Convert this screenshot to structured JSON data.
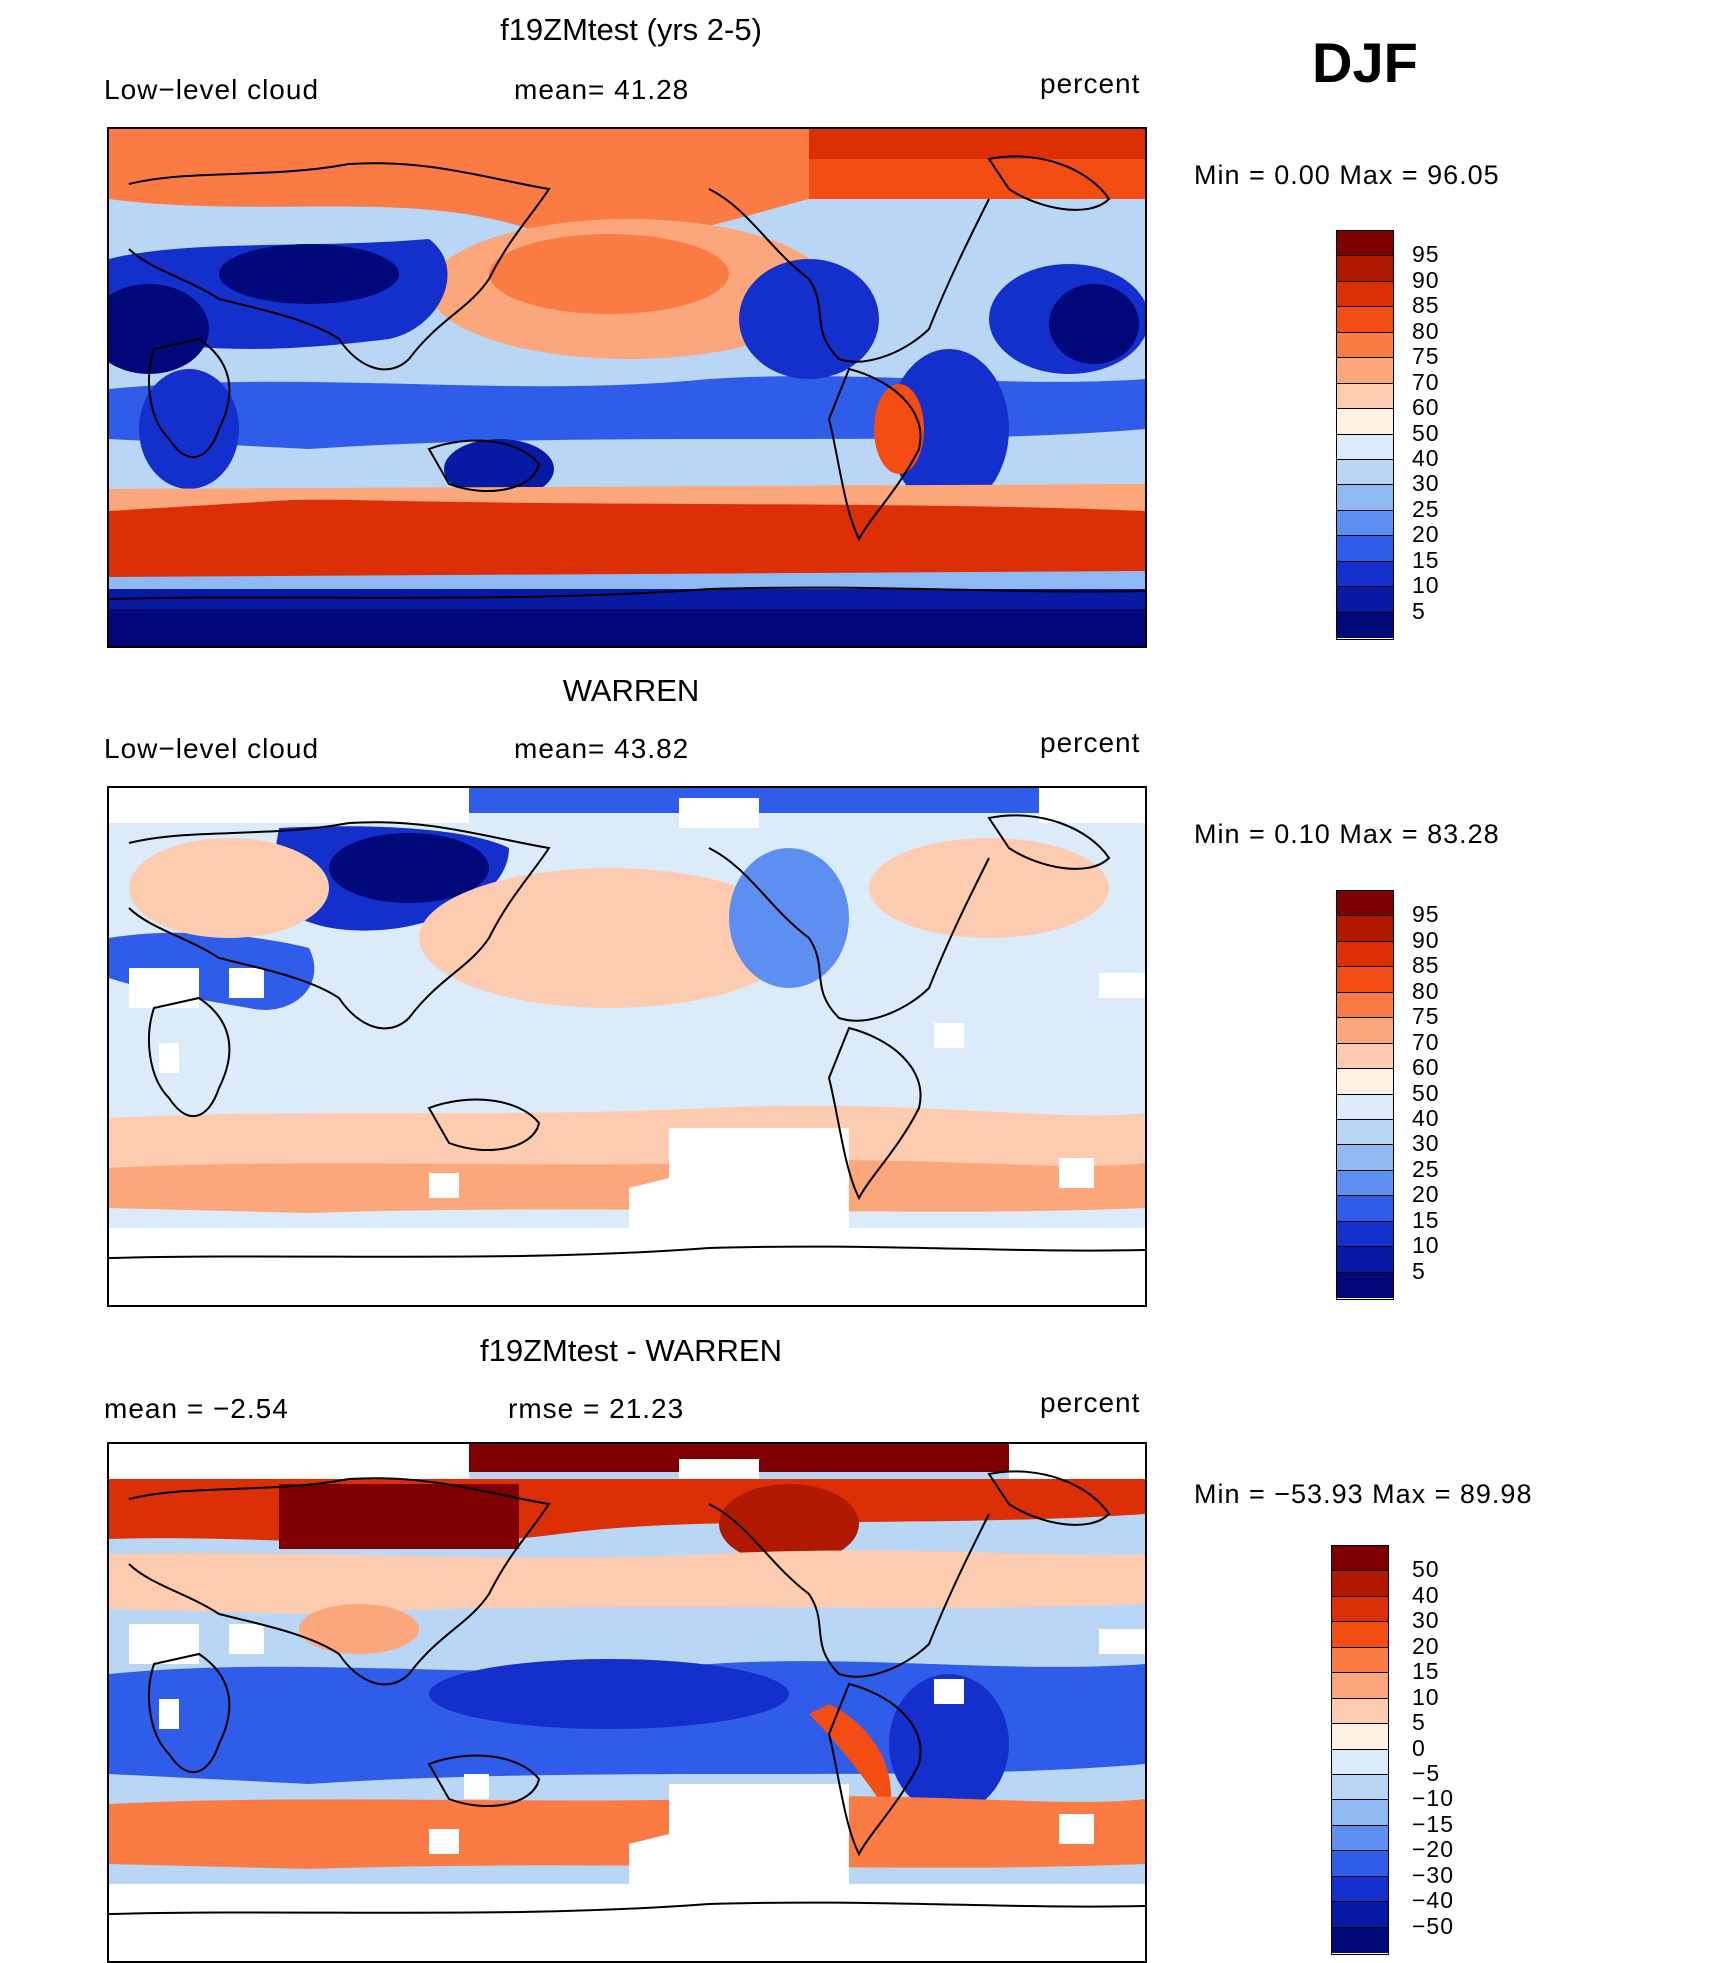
{
  "season": "DJF",
  "panels": [
    {
      "id": "model",
      "title": "f19ZMtest (yrs 2-5)",
      "left_label": "Low−level cloud",
      "mid_label": "mean=   41.28",
      "right_label": "percent",
      "minmax": "Min  =     0.00  Max  =    96.05"
    },
    {
      "id": "obs",
      "title": "WARREN",
      "left_label": "Low−level cloud",
      "mid_label": "mean=   43.82",
      "right_label": "percent",
      "minmax": "Min  =     0.10  Max  =    83.28"
    },
    {
      "id": "diff",
      "title": "f19ZMtest - WARREN",
      "left_label": "mean  =    −2.54",
      "mid_label": "rmse  =    21.23",
      "right_label": "percent",
      "minmax": "Min  = −53.93  Max  =    89.98"
    }
  ],
  "colorbars": {
    "absolute": {
      "labels": [
        "95",
        "90",
        "85",
        "80",
        "75",
        "70",
        "60",
        "50",
        "40",
        "30",
        "25",
        "20",
        "15",
        "10",
        "5"
      ],
      "colors": [
        "#7f0000",
        "#b01800",
        "#dc2f06",
        "#f44d14",
        "#fb7b45",
        "#fca67c",
        "#fdcbb0",
        "#fff1e2",
        "#dcebfa",
        "#b9d6f5",
        "#8fb9f2",
        "#5d8ff0",
        "#2f5ce8",
        "#1430cc",
        "#061aa3",
        "#00087a"
      ]
    },
    "difference": {
      "labels": [
        "50",
        "40",
        "30",
        "20",
        "15",
        "10",
        "5",
        "0",
        "−5",
        "−10",
        "−15",
        "−20",
        "−30",
        "−40",
        "−50"
      ],
      "colors": [
        "#7f0000",
        "#b01800",
        "#dc2f06",
        "#f44d14",
        "#fb7b45",
        "#fca67c",
        "#fdcbb0",
        "#fff1e2",
        "#dcebfa",
        "#b9d6f5",
        "#8fb9f2",
        "#5d8ff0",
        "#2f5ce8",
        "#1430cc",
        "#061aa3",
        "#00087a"
      ]
    }
  },
  "chart_data": [
    {
      "type": "heatmap",
      "title": "f19ZMtest (yrs 2-5)",
      "variable": "Low-level cloud",
      "units": "percent",
      "mean": 41.28,
      "min": 0.0,
      "max": 96.05,
      "contour_levels": [
        5,
        10,
        15,
        20,
        25,
        30,
        40,
        50,
        60,
        70,
        75,
        80,
        85,
        90,
        95
      ]
    },
    {
      "type": "heatmap",
      "title": "WARREN",
      "variable": "Low-level cloud",
      "units": "percent",
      "mean": 43.82,
      "min": 0.1,
      "max": 83.28,
      "contour_levels": [
        5,
        10,
        15,
        20,
        25,
        30,
        40,
        50,
        60,
        70,
        75,
        80,
        85,
        90,
        95
      ]
    },
    {
      "type": "heatmap",
      "title": "f19ZMtest - WARREN",
      "units": "percent",
      "mean": -2.54,
      "rmse": 21.23,
      "min": -53.93,
      "max": 89.98,
      "contour_levels": [
        -50,
        -40,
        -30,
        -20,
        -15,
        -10,
        -5,
        0,
        5,
        10,
        15,
        20,
        30,
        40,
        50
      ]
    }
  ]
}
